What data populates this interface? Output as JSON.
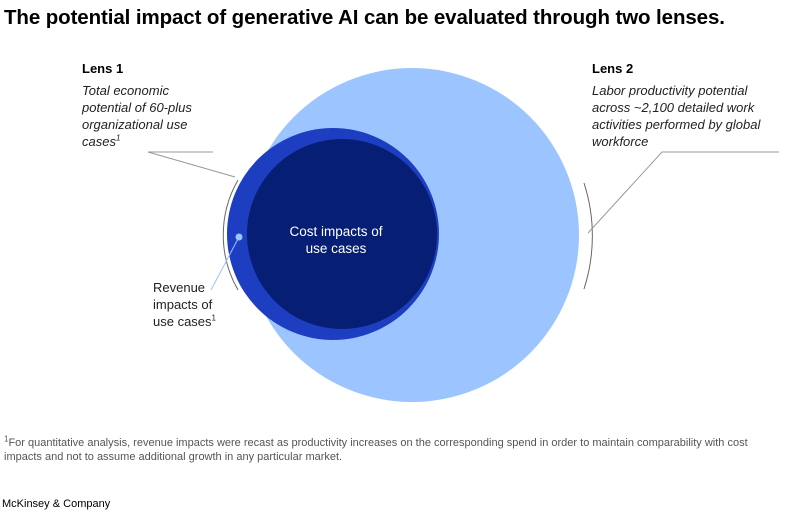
{
  "title": "The potential impact of generative AI can be evaluated through two lenses.",
  "lens1": {
    "heading": "Lens 1",
    "description": "Total economic potential of 60-plus organizational use cases",
    "footnote_mark": "1"
  },
  "lens2": {
    "heading": "Lens 2",
    "description": "Labor productivity potential across ~2,100 detailed work activities performed by global workforce"
  },
  "circles": {
    "cost": {
      "label": "Cost impacts of use cases"
    },
    "revenue": {
      "label": "Revenue impacts of use cases",
      "footnote_mark": "1"
    }
  },
  "colors": {
    "lens2_fill": "#9cc4fe",
    "revenue_fill": "#1e3ec2",
    "cost_fill": "#061e73",
    "revenue_dot": "#9cc4fe"
  },
  "footnote": {
    "mark": "1",
    "text": "For quantitative analysis, revenue impacts were recast as productivity increases on the corresponding spend in order to maintain comparability with cost impacts and not to assume additional growth in any particular market."
  },
  "brand": "McKinsey & Company"
}
